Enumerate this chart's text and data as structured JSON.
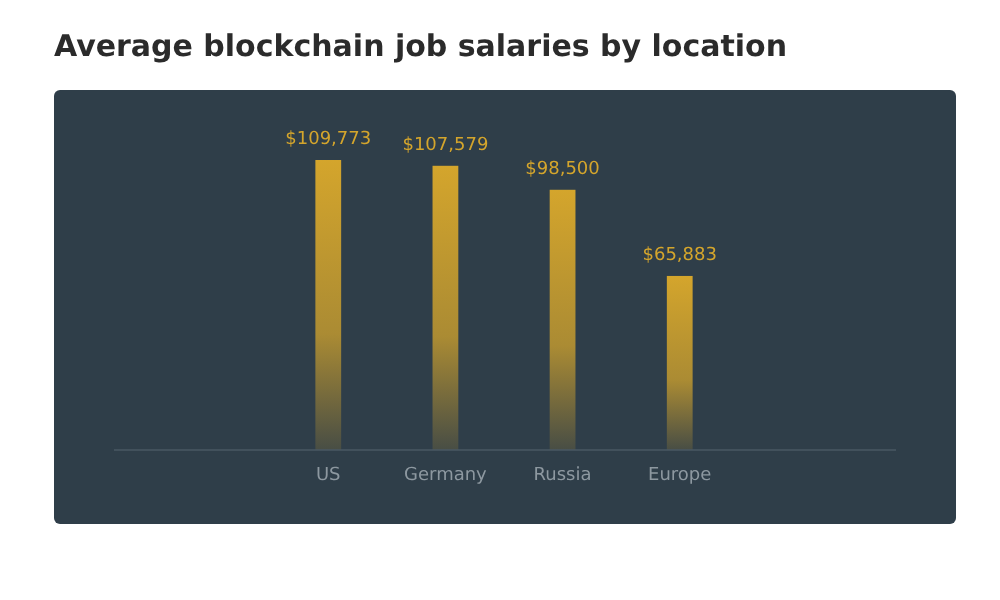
{
  "chart_data": {
    "type": "bar",
    "title": "Average blockchain job salaries by location",
    "categories": [
      "US",
      "Germany",
      "Russia",
      "Europe"
    ],
    "values": [
      109773,
      107579,
      98500,
      65883
    ],
    "value_labels": [
      "$109,773",
      "$107,579",
      "$98,500",
      "$65,883"
    ],
    "color": "#d4a52c"
  }
}
